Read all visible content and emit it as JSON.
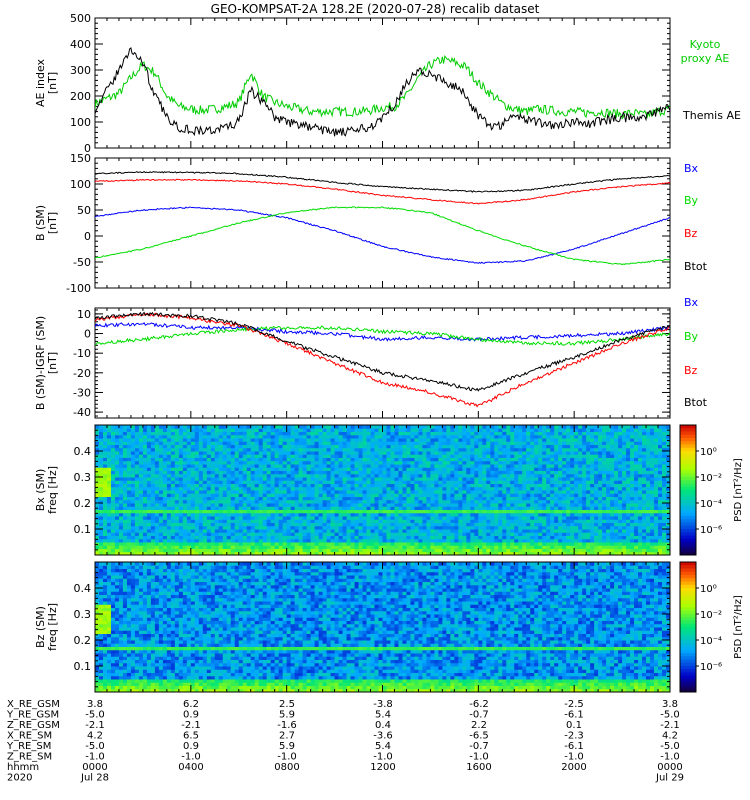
{
  "title": "GEO-KOMPSAT-2A 128.2E (2020-07-28) recalib dataset",
  "chart_data": [
    {
      "type": "line",
      "ylabel": "AE index\n[nT]",
      "ylim": [
        0,
        500
      ],
      "yticks": [
        0,
        100,
        200,
        300,
        400,
        500
      ],
      "x_range": [
        0,
        24
      ],
      "grid": false,
      "legend": [
        "Kyoto proxy AE",
        "Themis AE"
      ],
      "legend_text": {
        "kyoto": "Kyoto\nproxy AE",
        "themis": "Themis AE"
      },
      "series": [
        {
          "name": "Kyoto proxy AE",
          "color": "#00cc00",
          "x": [
            0,
            0.5,
            1,
            1.5,
            2,
            2.5,
            3,
            3.5,
            4,
            4.5,
            5,
            5.5,
            6,
            6.5,
            7,
            7.5,
            8,
            8.5,
            9,
            9.5,
            10,
            10.5,
            11,
            11.5,
            12,
            12.5,
            13,
            13.5,
            14,
            14.5,
            15,
            15.5,
            16,
            16.5,
            17,
            17.5,
            18,
            18.5,
            19,
            19.5,
            20,
            20.5,
            21,
            21.5,
            22,
            22.5,
            23,
            23.5,
            24
          ],
          "values": [
            170,
            190,
            210,
            270,
            320,
            290,
            200,
            160,
            150,
            145,
            150,
            160,
            175,
            290,
            200,
            175,
            160,
            150,
            140,
            140,
            140,
            140,
            140,
            145,
            155,
            160,
            200,
            270,
            320,
            340,
            330,
            310,
            250,
            210,
            170,
            150,
            140,
            150,
            145,
            140,
            140,
            135,
            140,
            135,
            130,
            135,
            125,
            140,
            150
          ]
        },
        {
          "name": "Themis AE",
          "color": "#000000",
          "x": [
            0,
            0.5,
            1,
            1.5,
            2,
            2.5,
            3,
            3.5,
            4,
            4.5,
            5,
            5.5,
            6,
            6.5,
            7,
            7.5,
            8,
            8.5,
            9,
            9.5,
            10,
            10.5,
            11,
            11.5,
            12,
            12.5,
            13,
            13.5,
            14,
            14.5,
            15,
            15.5,
            16,
            16.5,
            17,
            17.5,
            18,
            18.5,
            19,
            19.5,
            20,
            20.5,
            21,
            21.5,
            22,
            22.5,
            23,
            23.5,
            24
          ],
          "values": [
            150,
            220,
            300,
            380,
            330,
            200,
            120,
            80,
            70,
            65,
            70,
            80,
            100,
            220,
            180,
            120,
            100,
            90,
            80,
            70,
            60,
            60,
            70,
            80,
            120,
            170,
            250,
            300,
            280,
            260,
            240,
            200,
            120,
            85,
            90,
            130,
            110,
            100,
            90,
            95,
            100,
            90,
            100,
            110,
            120,
            110,
            120,
            140,
            160
          ]
        }
      ]
    },
    {
      "type": "line",
      "ylabel": "B (SM)\n[nT]",
      "ylim": [
        -100,
        150
      ],
      "yticks": [
        -100,
        -50,
        0,
        50,
        100,
        150
      ],
      "x_range": [
        0,
        24
      ],
      "grid": false,
      "legend": [
        "Bx",
        "By",
        "Bz",
        "Btot"
      ],
      "series": [
        {
          "name": "Bx",
          "color": "#0000ff",
          "x": [
            0,
            2,
            4,
            6,
            8,
            10,
            12,
            14,
            16,
            18,
            20,
            22,
            24
          ],
          "values": [
            38,
            50,
            55,
            50,
            35,
            10,
            -20,
            -40,
            -52,
            -48,
            -25,
            5,
            35
          ]
        },
        {
          "name": "By",
          "color": "#00dd00",
          "x": [
            0,
            2,
            4,
            6,
            8,
            10,
            12,
            14,
            16,
            18,
            20,
            22,
            24
          ],
          "values": [
            -42,
            -25,
            0,
            25,
            45,
            55,
            55,
            45,
            10,
            -20,
            -45,
            -55,
            -45
          ]
        },
        {
          "name": "Bz",
          "color": "#ff0000",
          "x": [
            0,
            2,
            4,
            6,
            8,
            10,
            12,
            14,
            16,
            18,
            20,
            22,
            24
          ],
          "values": [
            105,
            108,
            108,
            106,
            100,
            90,
            78,
            70,
            62,
            70,
            85,
            95,
            102
          ]
        },
        {
          "name": "Btot",
          "color": "#000000",
          "x": [
            0,
            2,
            4,
            6,
            8,
            10,
            12,
            14,
            16,
            18,
            20,
            22,
            24
          ],
          "values": [
            120,
            123,
            122,
            120,
            113,
            103,
            95,
            90,
            85,
            88,
            100,
            110,
            116
          ]
        }
      ]
    },
    {
      "type": "line",
      "ylabel": "B (SM)-IGRF (SM)\n[nT]",
      "ylim": [
        -43,
        13
      ],
      "yticks": [
        -40,
        -30,
        -20,
        -10,
        0,
        10
      ],
      "x_range": [
        0,
        24
      ],
      "grid": false,
      "legend": [
        "Bx",
        "By",
        "Bz",
        "Btot"
      ],
      "series": [
        {
          "name": "Bx",
          "color": "#0000ff",
          "x": [
            0,
            2,
            4,
            6,
            8,
            10,
            12,
            14,
            16,
            18,
            20,
            22,
            24
          ],
          "values": [
            4,
            5,
            3,
            3,
            1,
            0,
            -3,
            -2,
            -3,
            -2,
            -1,
            0,
            3
          ]
        },
        {
          "name": "By",
          "color": "#00dd00",
          "x": [
            0,
            2,
            4,
            6,
            8,
            10,
            12,
            14,
            16,
            18,
            20,
            22,
            24
          ],
          "values": [
            -5,
            -3,
            0,
            2,
            3,
            3,
            1,
            0,
            -3,
            -5,
            -5,
            -3,
            0
          ]
        },
        {
          "name": "Bz",
          "color": "#ff0000",
          "x": [
            0,
            2,
            4,
            6,
            8,
            10,
            12,
            14,
            16,
            18,
            20,
            22,
            24
          ],
          "values": [
            7,
            10,
            8,
            4,
            -5,
            -15,
            -25,
            -30,
            -37,
            -25,
            -15,
            -5,
            3
          ]
        },
        {
          "name": "Btot",
          "color": "#000000",
          "x": [
            0,
            2,
            4,
            6,
            8,
            10,
            12,
            14,
            16,
            18,
            20,
            22,
            24
          ],
          "values": [
            8,
            10,
            9,
            5,
            -4,
            -12,
            -20,
            -24,
            -29,
            -20,
            -12,
            -3,
            4
          ]
        }
      ]
    },
    {
      "type": "heatmap",
      "ylabel": "Bx (SM)\nfreq [Hz]",
      "ylim": [
        0,
        0.5
      ],
      "yticks": [
        0.1,
        0.2,
        0.3,
        0.4
      ],
      "x_range": [
        0,
        24
      ],
      "colorbar_label": "PSD [nT²/Hz]",
      "colorbar_ticks": [
        "10⁰",
        "10⁻²",
        "10⁻⁴",
        "10⁻⁶"
      ],
      "colorbar_exponents": [
        0,
        -2,
        -4,
        -6
      ],
      "features": {
        "background_level": -4.5,
        "line_freq": 0.17,
        "line_level": -2.5,
        "low_freq_level": -1.5
      }
    },
    {
      "type": "heatmap",
      "ylabel": "Bz (SM)\nfreq [Hz]",
      "ylim": [
        0,
        0.5
      ],
      "yticks": [
        0.1,
        0.2,
        0.3,
        0.4
      ],
      "x_range": [
        0,
        24
      ],
      "colorbar_label": "PSD [nT²/Hz]",
      "colorbar_ticks": [
        "10⁰",
        "10⁻²",
        "10⁻⁴",
        "10⁻⁶"
      ],
      "colorbar_exponents": [
        0,
        -2,
        -4,
        -6
      ],
      "features": {
        "background_level": -5.0,
        "line_freq": 0.17,
        "line_level": -2.5,
        "low_freq_level": -1.5
      }
    }
  ],
  "ephemeris": {
    "row_labels": [
      "X_RE_GSM",
      "Y_RE_GSM",
      "Z_RE_GSM",
      "X_RE_SM",
      "Y_RE_SM",
      "Z_RE_SM",
      "hhmm",
      "2020"
    ],
    "columns": [
      [
        "3.8",
        "-5.0",
        "-2.1",
        "4.2",
        "-5.0",
        "-1.0",
        "0000",
        "Jul 28"
      ],
      [
        "6.2",
        "0.9",
        "-2.1",
        "6.5",
        "0.9",
        "-1.0",
        "0400",
        ""
      ],
      [
        "2.5",
        "5.9",
        "-1.6",
        "2.7",
        "5.9",
        "-1.0",
        "0800",
        ""
      ],
      [
        "-3.8",
        "5.4",
        "0.4",
        "-3.6",
        "5.4",
        "-1.0",
        "1200",
        ""
      ],
      [
        "-6.2",
        "-0.7",
        "2.2",
        "-6.5",
        "-0.7",
        "-1.0",
        "1600",
        ""
      ],
      [
        "-2.5",
        "-6.1",
        "0.1",
        "-2.3",
        "-6.1",
        "-1.0",
        "2000",
        ""
      ],
      [
        "3.8",
        "-5.0",
        "-2.1",
        "4.2",
        "-5.0",
        "-1.0",
        "0000",
        "Jul 29"
      ]
    ]
  }
}
